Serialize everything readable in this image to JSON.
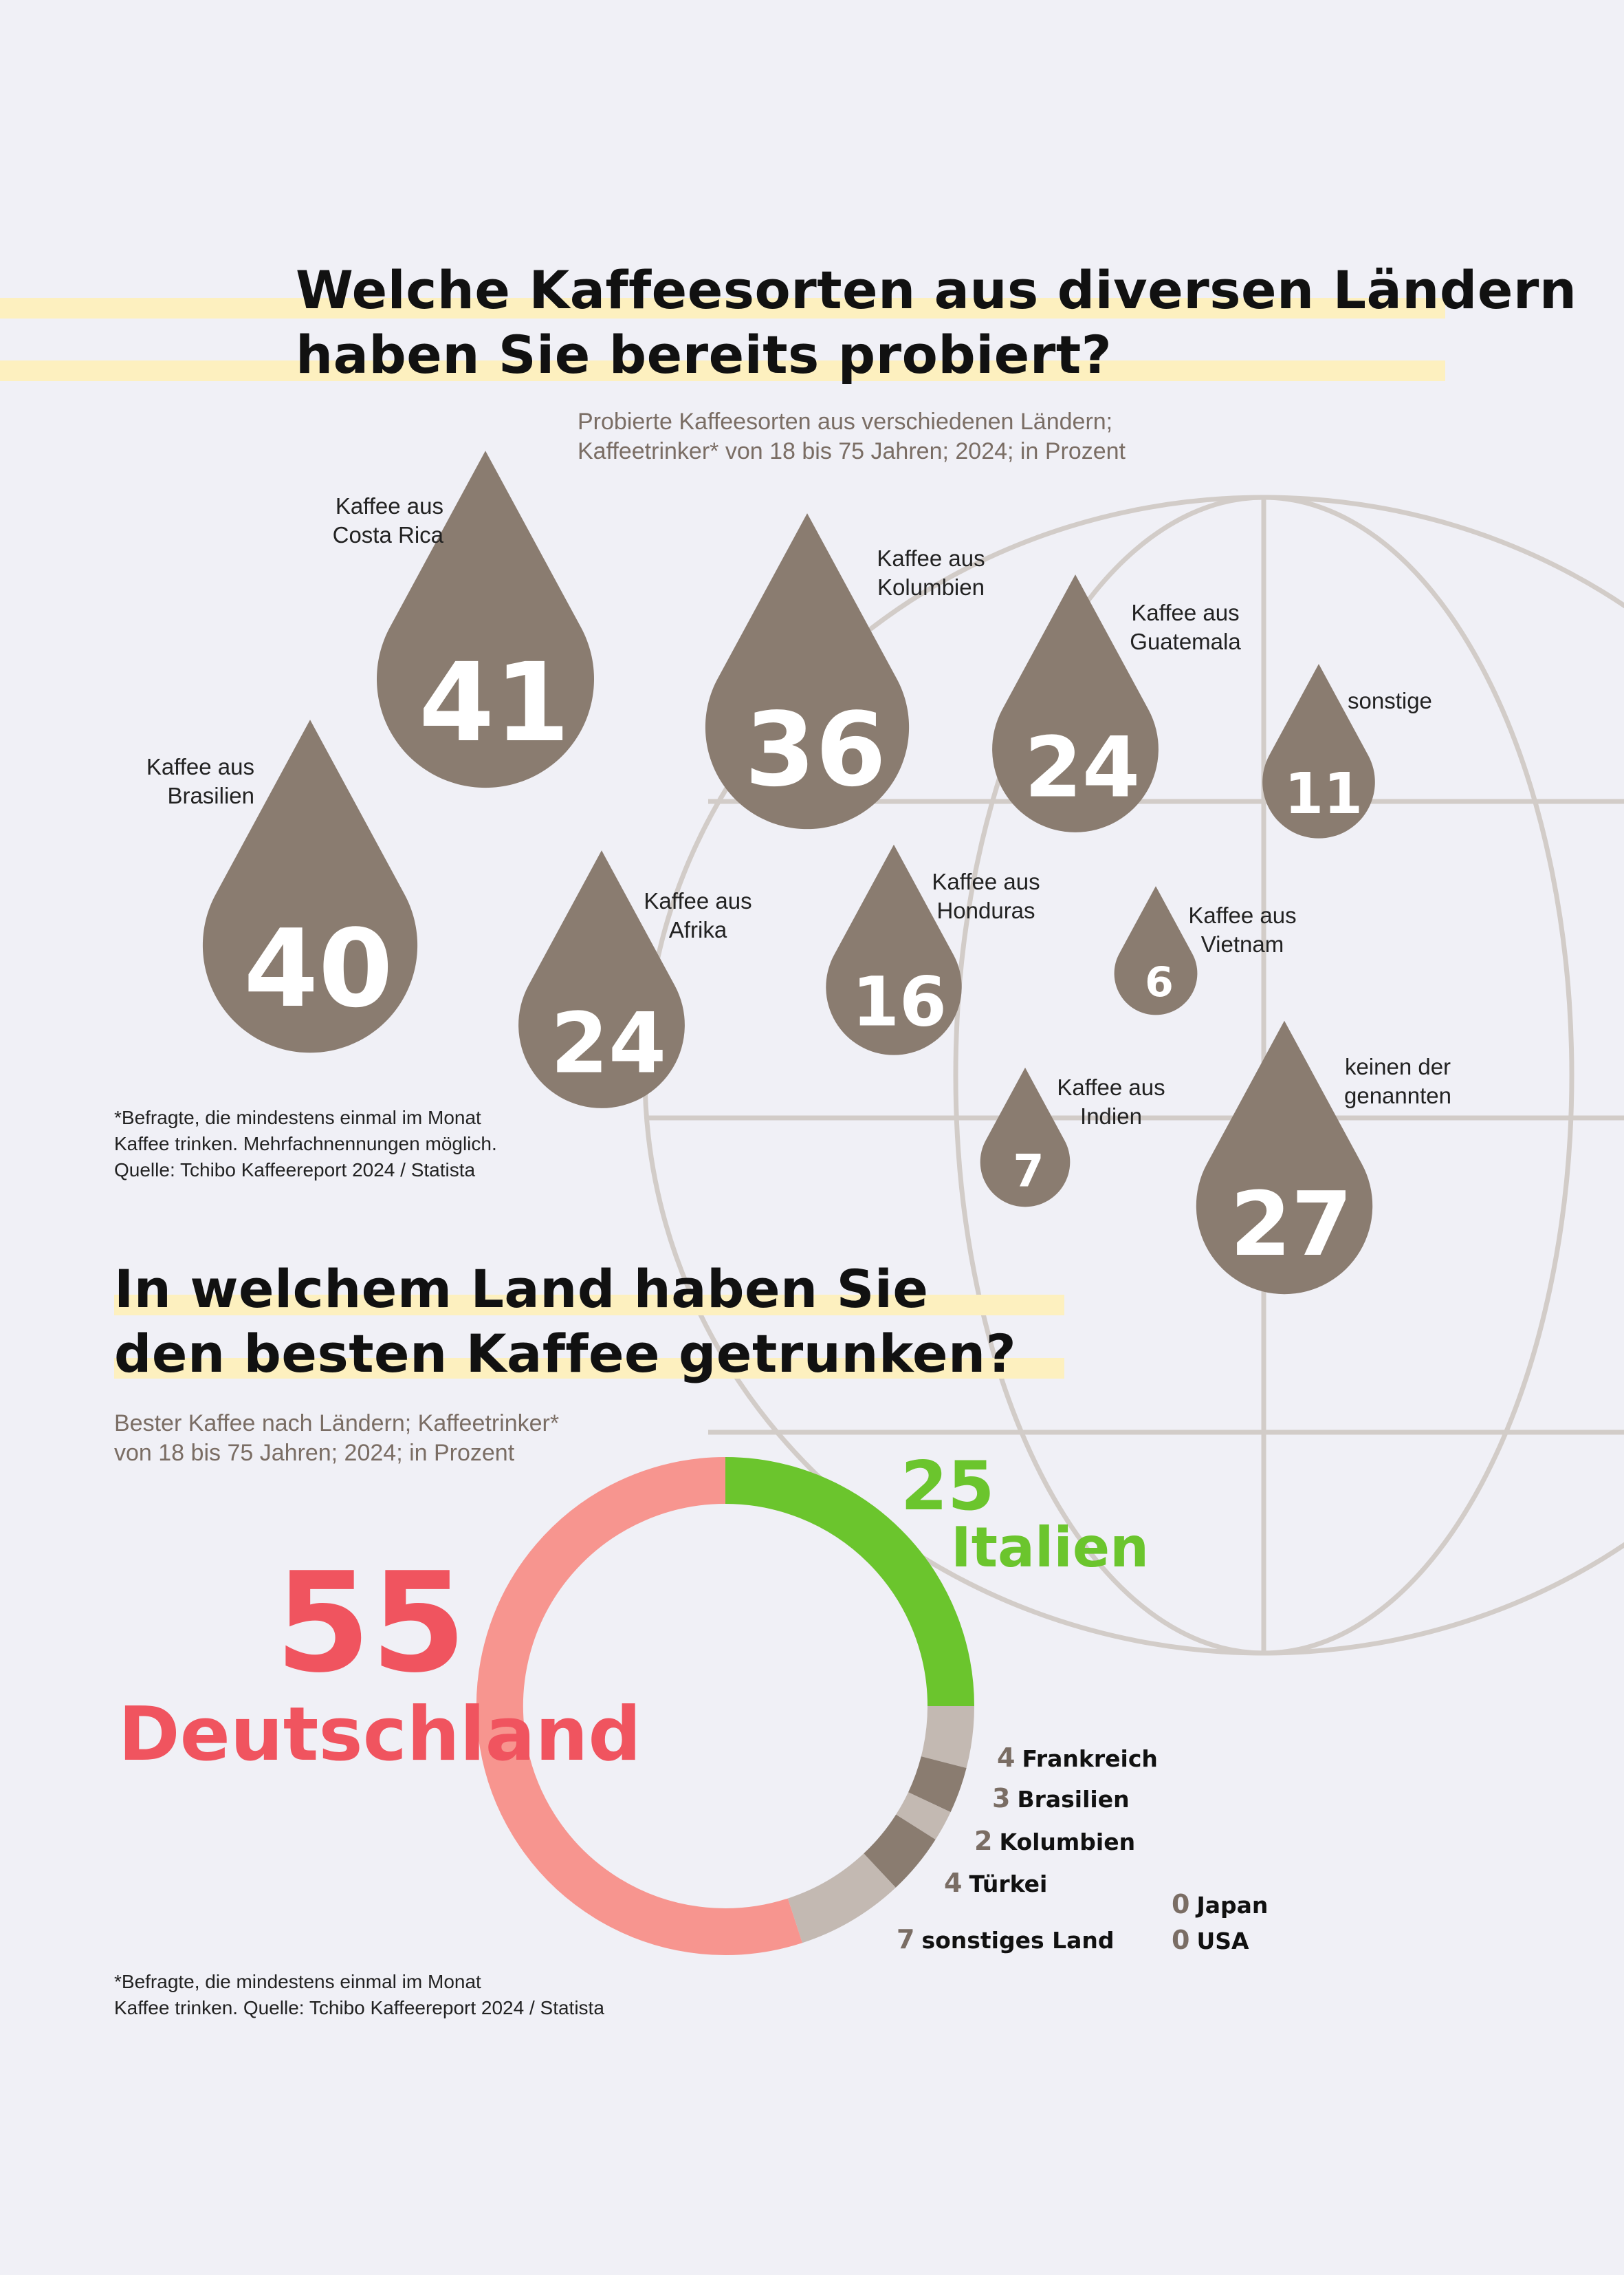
{
  "colors": {
    "background": "#f0f0f6",
    "drop": "#8a7c70",
    "highlight": "#fdf0bf",
    "globe": "#d2ccc8",
    "deutschland": "#f0545f",
    "deutschland_ring": "#f7958f",
    "italien": "#6bc52d",
    "grey_light": "#c3b9b2",
    "grey_dark": "#8a7c70"
  },
  "section1": {
    "title_lines": [
      "Welche Kaffeesorten aus diversen Ländern",
      "haben Sie bereits probiert?"
    ],
    "subtitle_lines": [
      "Probierte Kaffeesorten aus verschiedenen Ländern;",
      "Kaffeetrinker* von 18 bis 75 Jahren; 2024; in Prozent"
    ],
    "footnote_lines": [
      "*Befragte, die mindestens einmal im Monat",
      "Kaffee trinken. Mehrfachnennungen möglich.",
      "Quelle: Tchibo Kaffeereport 2024 / Statista"
    ]
  },
  "section2": {
    "title_lines": [
      "In welchem Land haben Sie",
      "den besten Kaffee getrunken?"
    ],
    "subtitle_lines": [
      "Bester Kaffee nach Ländern; Kaffeetrinker*",
      "von 18 bis 75 Jahren; 2024; in Prozent"
    ],
    "footnote_lines": [
      "*Befragte, die mindestens einmal im Monat",
      "Kaffee trinken. Quelle: Tchibo Kaffeereport 2024 / Statista"
    ]
  },
  "chart_data": [
    {
      "type": "bubble-drops",
      "title": "Welche Kaffeesorten aus diversen Ländern haben Sie bereits probiert?",
      "unit": "Prozent",
      "categories": [
        {
          "label_lines": [
            "Kaffee aus",
            "Costa Rica"
          ],
          "value": 41
        },
        {
          "label_lines": [
            "Kaffee aus",
            "Brasilien"
          ],
          "value": 40
        },
        {
          "label_lines": [
            "Kaffee aus",
            "Kolumbien"
          ],
          "value": 36
        },
        {
          "label_lines": [
            "keinen der",
            "genannten"
          ],
          "value": 27
        },
        {
          "label_lines": [
            "Kaffee aus",
            "Guatemala"
          ],
          "value": 24
        },
        {
          "label_lines": [
            "Kaffee aus",
            "Afrika"
          ],
          "value": 24
        },
        {
          "label_lines": [
            "Kaffee aus",
            "Honduras"
          ],
          "value": 16
        },
        {
          "label_lines": [
            "sonstige"
          ],
          "value": 11
        },
        {
          "label_lines": [
            "Kaffee aus",
            "Indien"
          ],
          "value": 7
        },
        {
          "label_lines": [
            "Kaffee aus",
            "Vietnam"
          ],
          "value": 6
        }
      ]
    },
    {
      "type": "pie",
      "variant": "donut",
      "title": "In welchem Land haben Sie den besten Kaffee getrunken?",
      "unit": "Prozent",
      "slices": [
        {
          "label": "Italien",
          "value": 25,
          "color": "#6bc52d"
        },
        {
          "label": "Frankreich",
          "value": 4,
          "color": "#c3b9b2"
        },
        {
          "label": "Brasilien",
          "value": 3,
          "color": "#8a7c70"
        },
        {
          "label": "Kolumbien",
          "value": 2,
          "color": "#c3b9b2"
        },
        {
          "label": "Türkei",
          "value": 4,
          "color": "#8a7c70"
        },
        {
          "label": "sonstiges Land",
          "value": 7,
          "color": "#c3b9b2"
        },
        {
          "label": "Deutschland",
          "value": 55,
          "color": "#f7958f"
        },
        {
          "label": "Japan",
          "value": 0,
          "color": "#8a7c70"
        },
        {
          "label": "USA",
          "value": 0,
          "color": "#8a7c70"
        }
      ]
    }
  ]
}
